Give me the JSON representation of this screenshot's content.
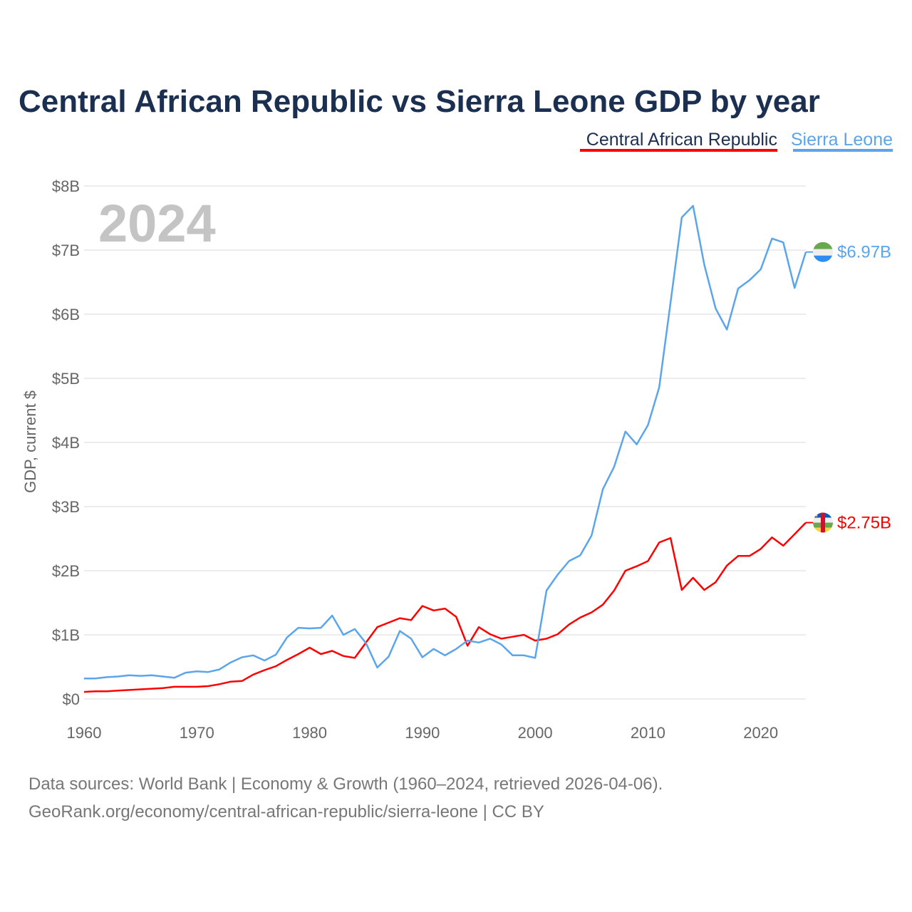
{
  "chart_data": {
    "type": "line",
    "title": "Central African Republic vs Sierra Leone GDP by year",
    "xlabel": "",
    "ylabel": "GDP, current $",
    "xlim": [
      1960,
      2024
    ],
    "ylim": [
      0,
      8
    ],
    "y_unit": "billion USD",
    "x_ticks": [
      1960,
      1970,
      1980,
      1990,
      2000,
      2010,
      2020
    ],
    "x_tick_labels": [
      "1960",
      "1970",
      "1980",
      "1990",
      "2000",
      "2010",
      "2020"
    ],
    "y_ticks": [
      0,
      1,
      2,
      3,
      4,
      5,
      6,
      7,
      8
    ],
    "y_tick_labels": [
      "$0",
      "$1B",
      "$2B",
      "$3B",
      "$4B",
      "$5B",
      "$6B",
      "$7B",
      "$8B"
    ],
    "grid": true,
    "legend_position": "top-right",
    "year_watermark": "2024",
    "x": [
      1960,
      1961,
      1962,
      1963,
      1964,
      1965,
      1966,
      1967,
      1968,
      1969,
      1970,
      1971,
      1972,
      1973,
      1974,
      1975,
      1976,
      1977,
      1978,
      1979,
      1980,
      1981,
      1982,
      1983,
      1984,
      1985,
      1986,
      1987,
      1988,
      1989,
      1990,
      1991,
      1992,
      1993,
      1994,
      1995,
      1996,
      1997,
      1998,
      1999,
      2000,
      2001,
      2002,
      2003,
      2004,
      2005,
      2006,
      2007,
      2008,
      2009,
      2010,
      2011,
      2012,
      2013,
      2014,
      2015,
      2016,
      2017,
      2018,
      2019,
      2020,
      2021,
      2022,
      2023,
      2024
    ],
    "series": [
      {
        "name": "Central African Republic",
        "color": "#ff0000",
        "end_label": "$2.75B",
        "flag": "central-african-republic-flag",
        "values": [
          0.11,
          0.12,
          0.12,
          0.13,
          0.14,
          0.15,
          0.16,
          0.17,
          0.19,
          0.19,
          0.19,
          0.2,
          0.23,
          0.27,
          0.28,
          0.38,
          0.45,
          0.51,
          0.61,
          0.7,
          0.8,
          0.7,
          0.75,
          0.67,
          0.64,
          0.88,
          1.12,
          1.19,
          1.26,
          1.23,
          1.45,
          1.38,
          1.41,
          1.28,
          0.83,
          1.12,
          1.01,
          0.94,
          0.97,
          1.0,
          0.91,
          0.94,
          1.01,
          1.16,
          1.27,
          1.35,
          1.47,
          1.69,
          2.0,
          2.07,
          2.15,
          2.44,
          2.51,
          1.7,
          1.89,
          1.7,
          1.82,
          2.08,
          2.23,
          2.23,
          2.34,
          2.52,
          2.39,
          2.57,
          2.75
        ]
      },
      {
        "name": "Sierra Leone",
        "color": "#5aa5ec",
        "end_label": "$6.97B",
        "flag": "sierra-leone-flag",
        "values": [
          0.32,
          0.32,
          0.34,
          0.35,
          0.37,
          0.36,
          0.37,
          0.35,
          0.33,
          0.41,
          0.43,
          0.42,
          0.46,
          0.57,
          0.65,
          0.68,
          0.6,
          0.69,
          0.96,
          1.11,
          1.1,
          1.11,
          1.3,
          1.0,
          1.09,
          0.87,
          0.49,
          0.66,
          1.06,
          0.94,
          0.65,
          0.78,
          0.68,
          0.78,
          0.91,
          0.88,
          0.94,
          0.85,
          0.68,
          0.68,
          0.64,
          1.69,
          1.94,
          2.15,
          2.24,
          2.55,
          3.27,
          3.62,
          4.17,
          3.97,
          4.27,
          4.86,
          6.18,
          7.51,
          7.69,
          6.77,
          6.09,
          5.76,
          6.4,
          6.53,
          6.7,
          7.18,
          7.12,
          6.41,
          6.97
        ]
      }
    ]
  },
  "footer": {
    "line1": "Data sources: World Bank | Economy & Growth (1960–2024, retrieved 2026-04-06).",
    "line2": "GeoRank.org/economy/central-african-republic/sierra-leone | CC BY"
  }
}
